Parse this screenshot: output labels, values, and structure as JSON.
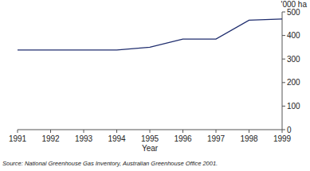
{
  "chart_data": {
    "type": "line",
    "x": [
      1991,
      1992,
      1993,
      1994,
      1995,
      1996,
      1997,
      1998,
      1999
    ],
    "series": [
      {
        "name": null,
        "color": "#1f2d6e",
        "values": [
          338,
          338,
          338,
          338,
          350,
          385,
          385,
          465,
          470
        ]
      }
    ],
    "xlim": [
      1991,
      1999
    ],
    "xticks": [
      1991,
      1992,
      1993,
      1994,
      1995,
      1996,
      1997,
      1998,
      1999
    ],
    "ylim": [
      0,
      500
    ],
    "yticks": [
      0,
      100,
      200,
      300,
      400,
      500
    ],
    "xlabel": "Year",
    "ylabel": "'000 ha",
    "annotations": [
      "Source: National Greenhouse Gas Inventory, Australian Greenhouse Office 2001."
    ]
  }
}
